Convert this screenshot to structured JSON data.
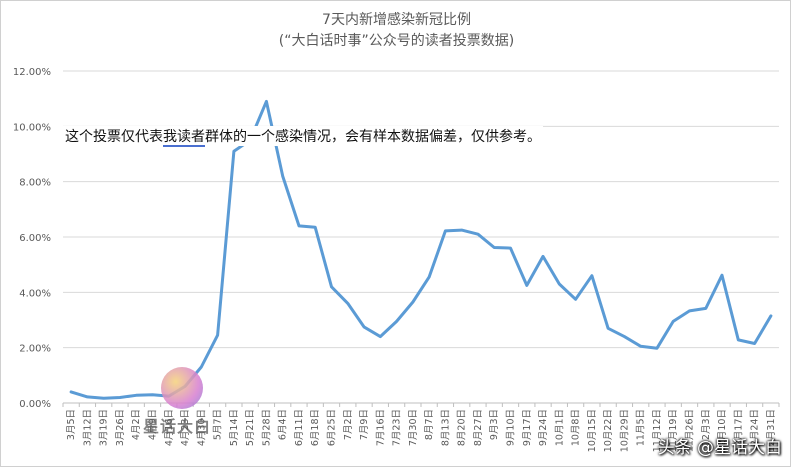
{
  "chart_data": {
    "type": "line",
    "title": "7天内新增感染新冠比例",
    "subtitle": "(“大白话时事”公众号的读者投票数据)",
    "xlabel": "",
    "ylabel": "",
    "ylim": [
      0,
      12
    ],
    "yticks": [
      "0.00%",
      "2.00%",
      "4.00%",
      "6.00%",
      "8.00%",
      "10.00%",
      "12.00%"
    ],
    "categories": [
      "3月5日",
      "3月12日",
      "3月19日",
      "3月26日",
      "4月2日",
      "4月9日",
      "4月16日",
      "4月23日",
      "4月30日",
      "5月7日",
      "5月14日",
      "5月21日",
      "5月28日",
      "6月4日",
      "6月11日",
      "6月18日",
      "6月25日",
      "7月2日",
      "7月9日",
      "7月16日",
      "7月23日",
      "7月30日",
      "8月7日",
      "8月13日",
      "8月20日",
      "8月27日",
      "9月3日",
      "9月10日",
      "9月17日",
      "9月24日",
      "10月1日",
      "10月8日",
      "10月15日",
      "10月22日",
      "10月29日",
      "11月5日",
      "11月12日",
      "11月19日",
      "11月26日",
      "12月3日",
      "12月10日",
      "12月17日",
      "12月24日",
      "12月31日"
    ],
    "series": [
      {
        "values": [
          0.4,
          0.22,
          0.17,
          0.2,
          0.28,
          0.3,
          0.25,
          0.6,
          1.3,
          2.45,
          9.1,
          9.5,
          10.9,
          8.2,
          6.4,
          6.35,
          4.2,
          3.6,
          2.75,
          2.4,
          2.95,
          3.65,
          4.55,
          6.22,
          6.25,
          6.1,
          5.62,
          5.6,
          4.25,
          5.3,
          4.3,
          3.75,
          4.6,
          2.7,
          2.4,
          2.05,
          1.98,
          2.95,
          3.33,
          3.42,
          4.62,
          2.28,
          2.15,
          3.15
        ]
      }
    ],
    "grid": true,
    "legend": "none",
    "line_color": "#5b9bd5"
  },
  "annotation": {
    "before": "这个投票仅代表",
    "underlined": "我读者",
    "after": "群体的一个感染情况，会有样本数据偏差，仅供参考。"
  },
  "watermarks": {
    "left": "星话大白",
    "right": "头条 @星话大白"
  }
}
